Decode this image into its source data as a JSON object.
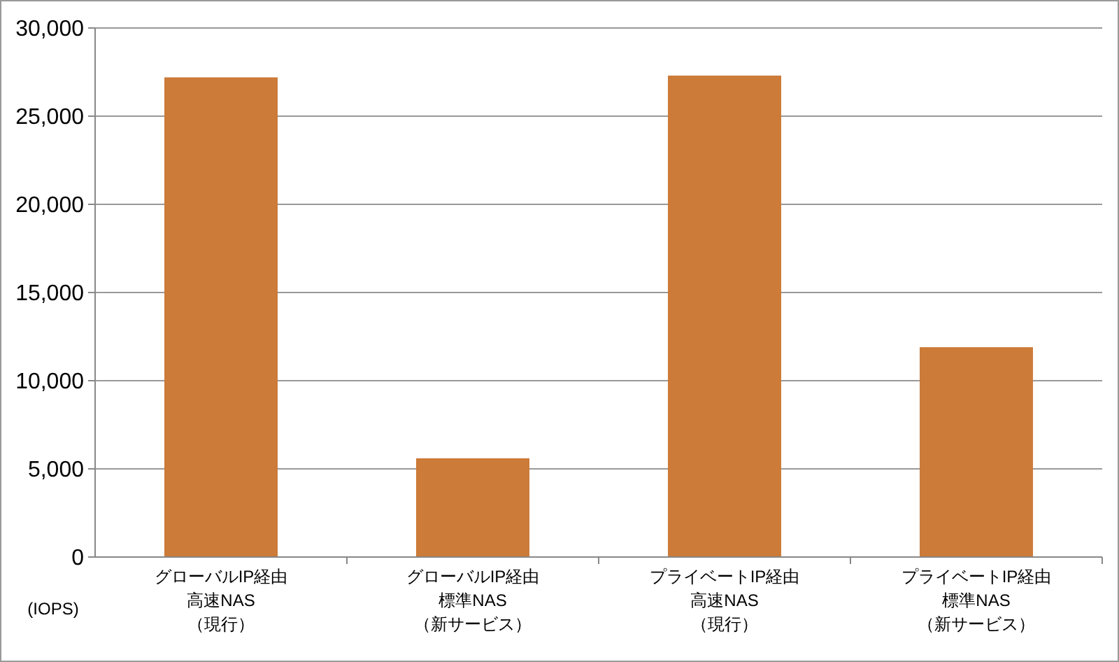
{
  "chart_data": {
    "type": "bar",
    "ylabel": "(IOPS)",
    "categories": [
      "グローバルIP経由高速NAS（現行）",
      "グローバルIP経由標準NAS（新サービス）",
      "プライベートIP経由高速NAS（現行）",
      "プライベートIP経由標準NAS（新サービス）"
    ],
    "values": [
      27200,
      5600,
      27300,
      11900
    ],
    "color": "#cc7b38",
    "ylim": [
      0,
      30000
    ],
    "yticks": [
      {
        "value": 0,
        "label": "0"
      },
      {
        "value": 5000,
        "label": "5,000"
      },
      {
        "value": 10000,
        "label": "10,000"
      },
      {
        "value": 15000,
        "label": "15,000"
      },
      {
        "value": 20000,
        "label": "20,000"
      },
      {
        "value": 25000,
        "label": "25,000"
      },
      {
        "value": 30000,
        "label": "30,000"
      }
    ],
    "grid": "y"
  }
}
